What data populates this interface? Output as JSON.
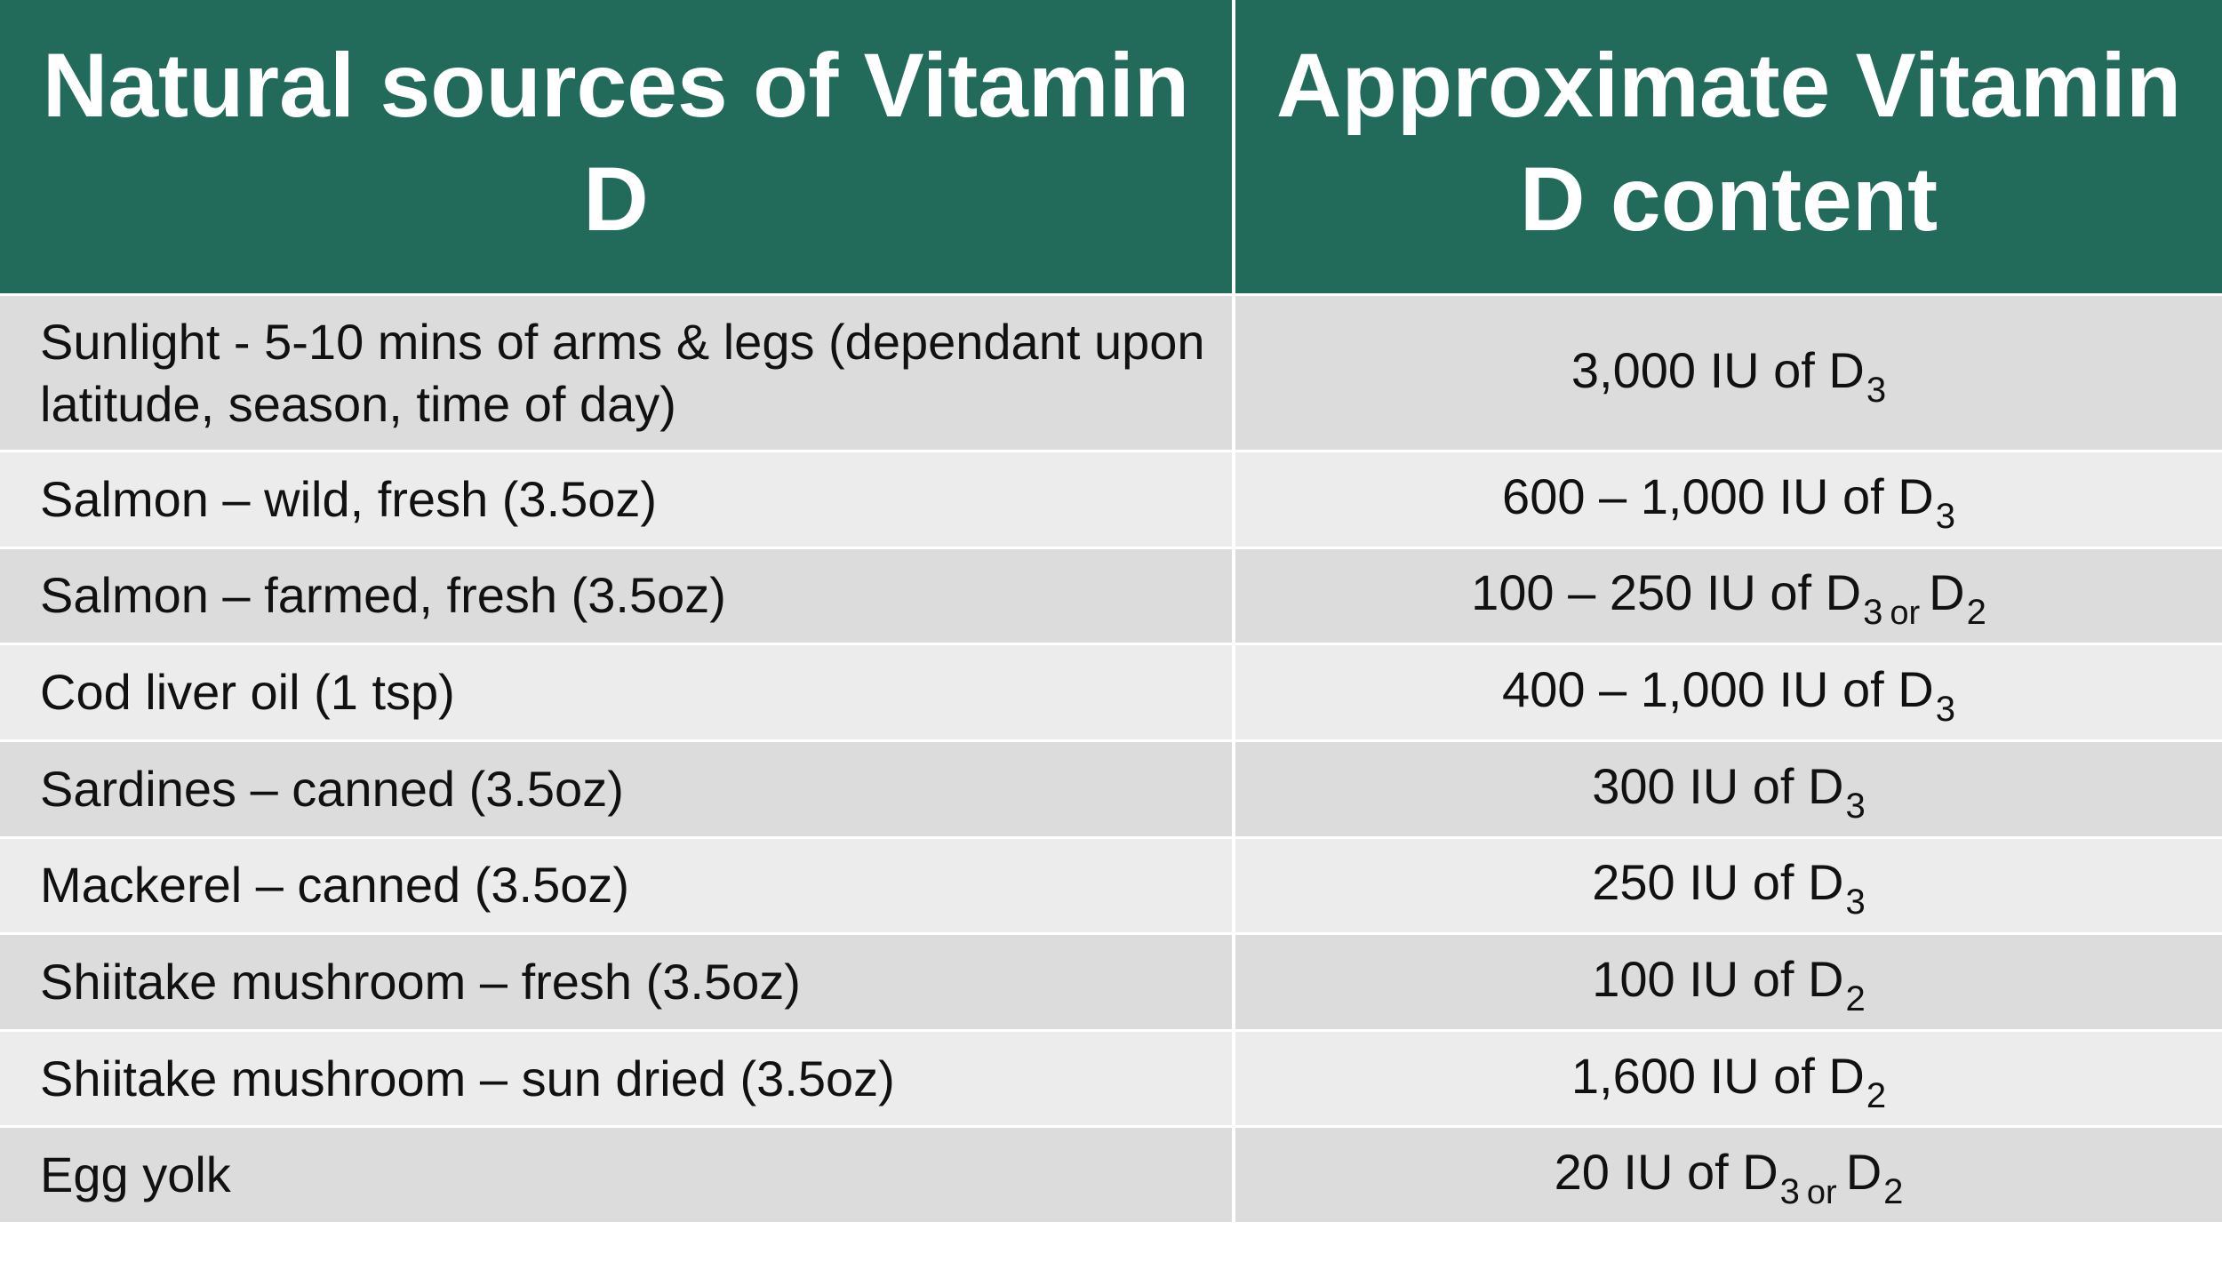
{
  "header": {
    "col1": "Natural sources of Vitamin D",
    "col2": "Approximate Vitamin D content"
  },
  "rows": [
    {
      "source": "Sunlight - 5-10 mins of arms & legs (dependant upon latitude, season, time of day)",
      "amount": "3,000 IU of D",
      "sub1": "3",
      "or": "",
      "d2": "",
      "sub2": ""
    },
    {
      "source": "Salmon – wild, fresh (3.5oz)",
      "amount": "600 – 1,000 IU of D",
      "sub1": "3",
      "or": "",
      "d2": "",
      "sub2": ""
    },
    {
      "source": "Salmon – farmed, fresh (3.5oz)",
      "amount": "100 – 250 IU of D",
      "sub1": "3",
      "or": "or",
      "d2": "D",
      "sub2": "2"
    },
    {
      "source": "Cod liver oil (1 tsp)",
      "amount": "400 – 1,000 IU of D",
      "sub1": "3",
      "or": "",
      "d2": "",
      "sub2": ""
    },
    {
      "source": "Sardines – canned (3.5oz)",
      "amount": "300 IU of D",
      "sub1": "3",
      "or": "",
      "d2": "",
      "sub2": ""
    },
    {
      "source": "Mackerel – canned (3.5oz)",
      "amount": "250 IU of D",
      "sub1": "3",
      "or": "",
      "d2": "",
      "sub2": ""
    },
    {
      "source": "Shiitake mushroom – fresh (3.5oz)",
      "amount": "100 IU of D",
      "sub1": "2",
      "or": "",
      "d2": "",
      "sub2": ""
    },
    {
      "source": "Shiitake mushroom – sun dried (3.5oz)",
      "amount": "1,600 IU of D",
      "sub1": "2",
      "or": "",
      "d2": "",
      "sub2": ""
    },
    {
      "source": "Egg yolk",
      "amount": "20 IU of D",
      "sub1": "3",
      "or": "or",
      "d2": "D",
      "sub2": "2"
    }
  ],
  "colors": {
    "header_bg": "#226b5a",
    "row_dark": "#dcdcdc",
    "row_light": "#ececec"
  }
}
